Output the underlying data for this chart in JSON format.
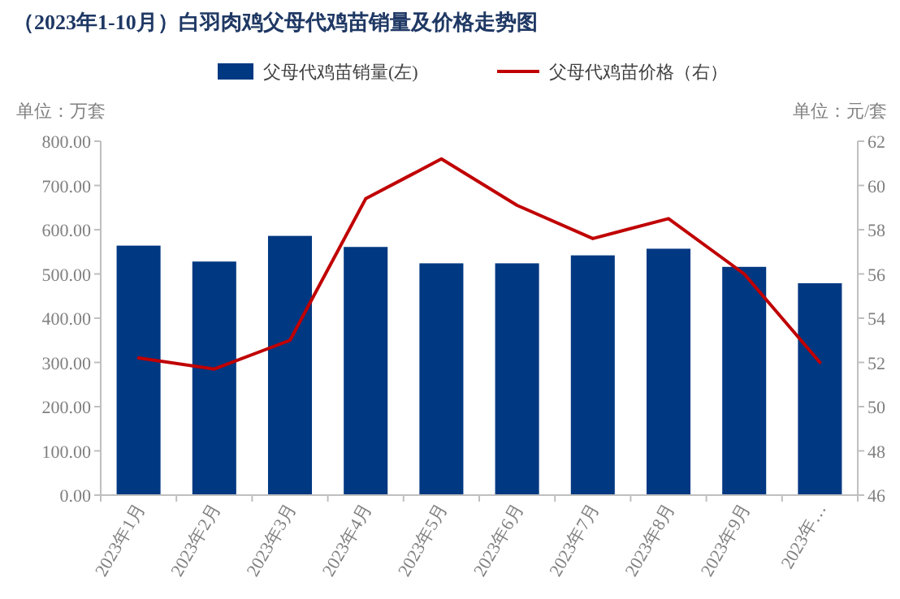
{
  "chart_data": {
    "type": "bar",
    "title": "（2023年1-10月）白羽肉鸡父母代鸡苗销量及价格走势图",
    "ylabel": "单位：万套",
    "y2label": "单位：元/套",
    "categories": [
      "2023年1月",
      "2023年2月",
      "2023年3月",
      "2023年4月",
      "2023年5月",
      "2023年6月",
      "2023年7月",
      "2023年8月",
      "2023年9月",
      "2023年…"
    ],
    "series": [
      {
        "name": "父母代鸡苗销量(左)",
        "color": "#003882",
        "values": [
          564,
          528,
          586,
          561,
          524,
          524,
          542,
          557,
          516,
          479
        ]
      },
      {
        "name": "父母代鸡苗价格（右）",
        "type": "line",
        "axis": "y2",
        "color": "#c00000",
        "values": [
          52.2,
          51.7,
          53.0,
          59.4,
          61.2,
          59.1,
          57.6,
          58.5,
          56.0,
          52.0
        ]
      }
    ],
    "ylim": [
      0,
      800
    ],
    "yticks": [
      {
        "value": 0,
        "label": "0.00"
      },
      {
        "value": 100,
        "label": "100.00"
      },
      {
        "value": 200,
        "label": "200.00"
      },
      {
        "value": 300,
        "label": "300.00"
      },
      {
        "value": 400,
        "label": "400.00"
      },
      {
        "value": 500,
        "label": "500.00"
      },
      {
        "value": 600,
        "label": "600.00"
      },
      {
        "value": 700,
        "label": "700.00"
      },
      {
        "value": 800,
        "label": "800.00"
      }
    ],
    "y2lim": [
      46,
      62
    ],
    "y2ticks": [
      46,
      48,
      50,
      52,
      54,
      56,
      58,
      60,
      62
    ],
    "legend": "top",
    "grid": false
  }
}
